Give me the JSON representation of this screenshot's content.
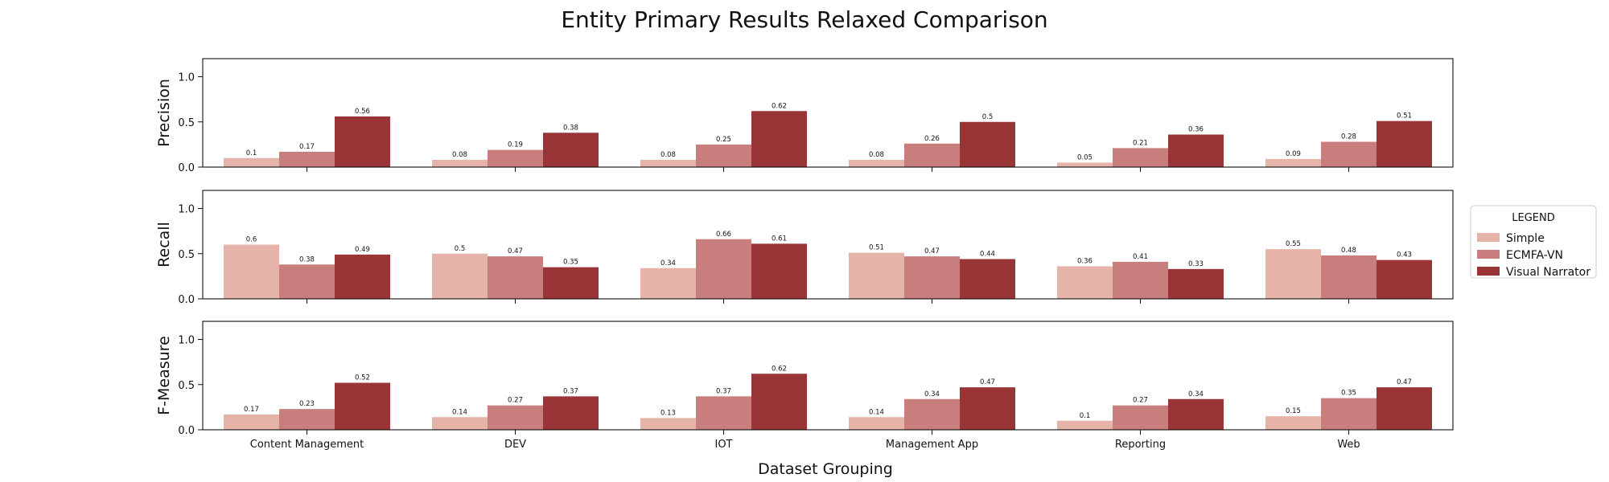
{
  "chart_data": {
    "type": "bar",
    "title": "Entity Primary Results Relaxed Comparison",
    "xlabel": "Dataset Grouping",
    "categories": [
      "Content Management",
      "DEV",
      "IOT",
      "Management App",
      "Reporting",
      "Web"
    ],
    "ylim": [
      0,
      1.2
    ],
    "yticks": [
      "0.0",
      "0.5",
      "1.0"
    ],
    "grid": false,
    "legend": {
      "title": "LEGEND",
      "placement": "right",
      "entries": [
        "Simple",
        "ECMFA-VN",
        "Visual Narrator"
      ]
    },
    "colors": {
      "Simple": "#e6b3a8",
      "ECMFA-VN": "#c77e7d",
      "Visual Narrator": "#993537"
    },
    "panels": [
      {
        "ylabel": "Precision",
        "series": [
          {
            "name": "Simple",
            "values": [
              0.1,
              0.08,
              0.08,
              0.08,
              0.05,
              0.09
            ]
          },
          {
            "name": "ECMFA-VN",
            "values": [
              0.17,
              0.19,
              0.25,
              0.26,
              0.21,
              0.28
            ]
          },
          {
            "name": "Visual Narrator",
            "values": [
              0.56,
              0.38,
              0.62,
              0.5,
              0.36,
              0.51
            ]
          }
        ]
      },
      {
        "ylabel": "Recall",
        "series": [
          {
            "name": "Simple",
            "values": [
              0.6,
              0.5,
              0.34,
              0.51,
              0.36,
              0.55
            ]
          },
          {
            "name": "ECMFA-VN",
            "values": [
              0.38,
              0.47,
              0.66,
              0.47,
              0.41,
              0.48
            ]
          },
          {
            "name": "Visual Narrator",
            "values": [
              0.49,
              0.35,
              0.61,
              0.44,
              0.33,
              0.43
            ]
          }
        ]
      },
      {
        "ylabel": "F-Measure",
        "series": [
          {
            "name": "Simple",
            "values": [
              0.17,
              0.14,
              0.13,
              0.14,
              0.1,
              0.15
            ]
          },
          {
            "name": "ECMFA-VN",
            "values": [
              0.23,
              0.27,
              0.37,
              0.34,
              0.27,
              0.35
            ]
          },
          {
            "name": "Visual Narrator",
            "values": [
              0.52,
              0.37,
              0.62,
              0.47,
              0.34,
              0.47
            ]
          }
        ]
      }
    ]
  }
}
